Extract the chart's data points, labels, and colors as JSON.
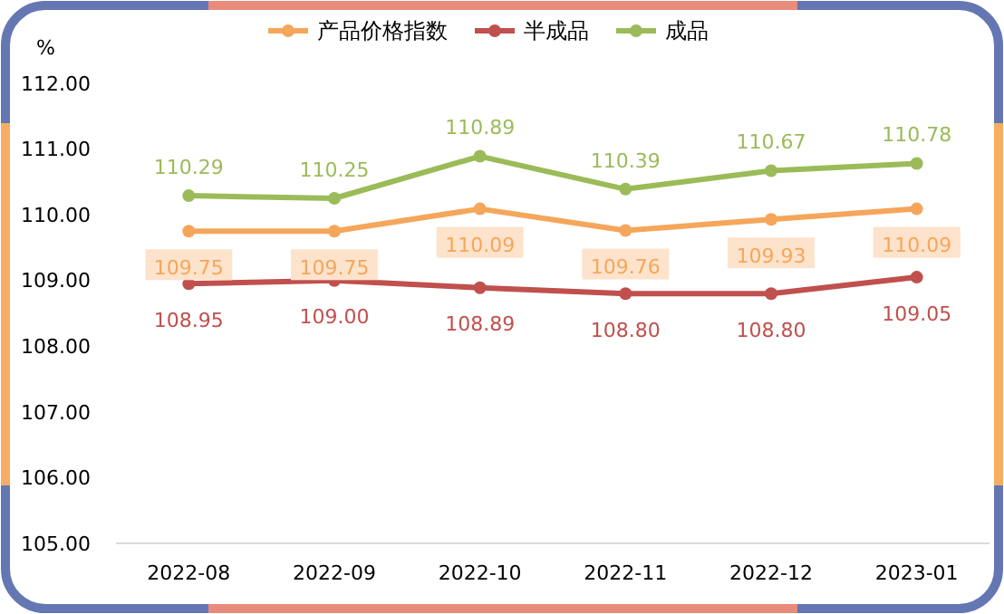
{
  "chart_data": {
    "type": "line",
    "ylabel": "%",
    "categories": [
      "2022-08",
      "2022-09",
      "2022-10",
      "2022-11",
      "2022-12",
      "2023-01"
    ],
    "series": [
      {
        "name": "产品价格指数",
        "color": "#f5a65b",
        "values": [
          109.75,
          109.75,
          110.09,
          109.76,
          109.93,
          110.09
        ],
        "value_labels": [
          "109.75",
          "109.75",
          "110.09",
          "109.76",
          "109.93",
          "110.09"
        ]
      },
      {
        "name": "半成品",
        "color": "#c0504d",
        "values": [
          108.95,
          109.0,
          108.89,
          108.8,
          108.8,
          109.05
        ],
        "value_labels": [
          "108.95",
          "109.00",
          "108.89",
          "108.80",
          "108.80",
          "109.05"
        ]
      },
      {
        "name": "成品",
        "color": "#9bbb59",
        "values": [
          110.29,
          110.25,
          110.89,
          110.39,
          110.67,
          110.78
        ],
        "value_labels": [
          "110.29",
          "110.25",
          "110.89",
          "110.39",
          "110.67",
          "110.78"
        ]
      }
    ],
    "ylim": [
      105,
      112
    ],
    "yticks": [
      {
        "value": 105,
        "label": "105.00"
      },
      {
        "value": 106,
        "label": "106.00"
      },
      {
        "value": 107,
        "label": "107.00"
      },
      {
        "value": 108,
        "label": "108.00"
      },
      {
        "value": 109,
        "label": "109.00"
      },
      {
        "value": 110,
        "label": "110.00"
      },
      {
        "value": 111,
        "label": "111.00"
      },
      {
        "value": 112,
        "label": "112.00"
      }
    ],
    "legend": "top",
    "marker": "circle",
    "line_style": "solid",
    "grid": false
  }
}
